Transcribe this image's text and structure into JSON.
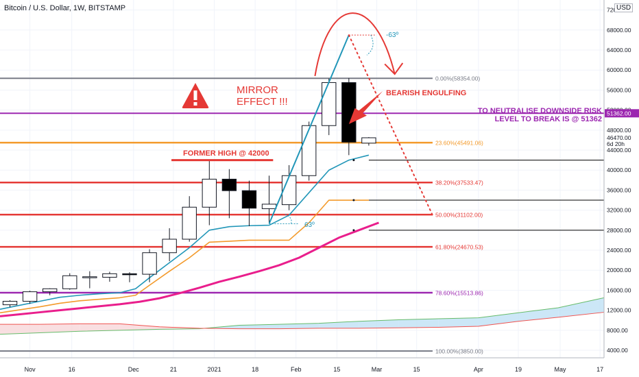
{
  "chart_data": {
    "type": "candlestick",
    "title": "Bitcoin / U.S. Dollar, 1W, BITSTAMP",
    "currency_badge": "USD",
    "yaxis": {
      "ylim": [
        2500,
        74000
      ],
      "scale": "linear",
      "side": "right",
      "ticks": [
        {
          "value": 4000,
          "label": "4000.00"
        },
        {
          "value": 8000,
          "label": "8000.00"
        },
        {
          "value": 12000,
          "label": "12000.00"
        },
        {
          "value": 16000,
          "label": "16000.00"
        },
        {
          "value": 20000,
          "label": "20000.00"
        },
        {
          "value": 24000,
          "label": "24000.00"
        },
        {
          "value": 28000,
          "label": "28000.00"
        },
        {
          "value": 32000,
          "label": "32000.00"
        },
        {
          "value": 36000,
          "label": "36000.00"
        },
        {
          "value": 40000,
          "label": "40000.00"
        },
        {
          "value": 44000,
          "label": "44000.00"
        },
        {
          "value": 48000,
          "label": "48000.00"
        },
        {
          "value": 52000,
          "label": "52000.00"
        },
        {
          "value": 56000,
          "label": "56000.00"
        },
        {
          "value": 60000,
          "label": "60000.00"
        },
        {
          "value": 64000,
          "label": "64000.00"
        },
        {
          "value": 68000,
          "label": "68000.00"
        },
        {
          "value": 72000,
          "label": "72000.00"
        }
      ],
      "price_tags": [
        {
          "value": 51362,
          "label": "51362.00",
          "color": "#9c27b0"
        },
        {
          "value": 46470,
          "label": "46470.00",
          "color": "#000000",
          "sub": "6d 20h"
        }
      ]
    },
    "xaxis": {
      "xlim": [
        0,
        30.3
      ],
      "ticks": [
        {
          "x": 1.5,
          "label": "Nov"
        },
        {
          "x": 3.6,
          "label": "16"
        },
        {
          "x": 6.7,
          "label": "Dec"
        },
        {
          "x": 8.7,
          "label": "21"
        },
        {
          "x": 10.75,
          "label": "2021"
        },
        {
          "x": 12.8,
          "label": "18"
        },
        {
          "x": 14.85,
          "label": "Feb"
        },
        {
          "x": 16.9,
          "label": "15"
        },
        {
          "x": 18.9,
          "label": "Mar"
        },
        {
          "x": 20.9,
          "label": "15"
        },
        {
          "x": 24.0,
          "label": "Apr"
        },
        {
          "x": 26.0,
          "label": "19"
        },
        {
          "x": 28.1,
          "label": "May"
        },
        {
          "x": 30.1,
          "label": "17"
        }
      ]
    },
    "candles": [
      {
        "x": 0.5,
        "o": 13100,
        "h": 14000,
        "l": 12600,
        "c": 13800
      },
      {
        "x": 1.5,
        "o": 13800,
        "h": 15900,
        "l": 13300,
        "c": 15700
      },
      {
        "x": 2.5,
        "o": 15700,
        "h": 16400,
        "l": 15000,
        "c": 16300
      },
      {
        "x": 3.5,
        "o": 16300,
        "h": 19400,
        "l": 16100,
        "c": 18900
      },
      {
        "x": 4.5,
        "o": 18500,
        "h": 19800,
        "l": 16400,
        "c": 18700
      },
      {
        "x": 5.5,
        "o": 18600,
        "h": 19700,
        "l": 17700,
        "c": 19300
      },
      {
        "x": 6.5,
        "o": 19300,
        "h": 19600,
        "l": 17600,
        "c": 19200
      },
      {
        "x": 7.5,
        "o": 19200,
        "h": 24200,
        "l": 17600,
        "c": 23500
      },
      {
        "x": 8.5,
        "o": 23500,
        "h": 28400,
        "l": 21800,
        "c": 26200
      },
      {
        "x": 9.5,
        "o": 26200,
        "h": 34800,
        "l": 25700,
        "c": 32600
      },
      {
        "x": 10.5,
        "o": 32600,
        "h": 41900,
        "l": 29000,
        "c": 38200
      },
      {
        "x": 11.5,
        "o": 38200,
        "h": 40200,
        "l": 30400,
        "c": 35900
      },
      {
        "x": 12.5,
        "o": 35900,
        "h": 37900,
        "l": 28800,
        "c": 32400
      },
      {
        "x": 13.5,
        "o": 32300,
        "h": 38900,
        "l": 29300,
        "c": 33200
      },
      {
        "x": 14.5,
        "o": 33100,
        "h": 41000,
        "l": 32000,
        "c": 38900
      },
      {
        "x": 15.5,
        "o": 38900,
        "h": 49700,
        "l": 37900,
        "c": 48900
      },
      {
        "x": 16.5,
        "o": 48900,
        "h": 58300,
        "l": 47000,
        "c": 57500
      },
      {
        "x": 17.5,
        "o": 57500,
        "h": 58400,
        "l": 43000,
        "c": 45600
      },
      {
        "x": 18.5,
        "o": 45400,
        "h": 46600,
        "l": 44900,
        "c": 46470
      }
    ],
    "series": [
      {
        "name": "",
        "color": "#2196b8",
        "x": [
          0,
          1,
          2,
          3,
          4,
          5,
          6,
          6.8,
          7.5,
          8.5,
          9.5,
          10.5,
          11.5,
          12.5,
          13.5,
          14.5,
          15.5,
          16.5,
          17.5,
          18.5
        ],
        "values": [
          12200,
          13000,
          13800,
          14600,
          15000,
          15300,
          15500,
          16300,
          18500,
          21500,
          24500,
          28000,
          28700,
          28900,
          29000,
          31000,
          35500,
          40000,
          42000,
          43000
        ]
      },
      {
        "name": "",
        "color": "#f39a2b",
        "x": [
          0,
          1,
          2,
          3,
          4,
          5,
          6,
          6.8,
          7.5,
          8.5,
          9.5,
          10.5,
          11.5,
          12.5,
          13.5,
          14.5,
          15.5,
          16.5,
          17.5,
          18.5
        ],
        "values": [
          11500,
          12100,
          12700,
          13400,
          13900,
          14200,
          14500,
          15000,
          17000,
          19800,
          22500,
          25600,
          25800,
          26000,
          26000,
          26000,
          29500,
          34000,
          34000,
          34000
        ]
      },
      {
        "name": "",
        "color": "#e91e8c",
        "x": [
          0,
          1,
          2,
          3,
          4,
          5,
          6,
          7,
          8,
          9,
          10,
          11,
          12,
          13,
          14,
          15,
          16,
          17,
          18,
          19
        ],
        "values": [
          10800,
          11200,
          11600,
          12000,
          12400,
          12800,
          13200,
          13700,
          14400,
          15400,
          16500,
          17700,
          18700,
          19800,
          21000,
          22500,
          24500,
          26500,
          28000,
          29500
        ]
      }
    ],
    "ichimoku_cloud": {
      "x": [
        0,
        2,
        4,
        6,
        8,
        10,
        12,
        14,
        16,
        18,
        20,
        22,
        24,
        26,
        28,
        30.3
      ],
      "span_a": [
        7200,
        7500,
        7800,
        8000,
        8200,
        8300,
        9000,
        9200,
        9400,
        9800,
        10100,
        10300,
        10500,
        11500,
        12500,
        14500
      ],
      "span_b": [
        9200,
        9200,
        9300,
        9300,
        8700,
        8400,
        8300,
        8300,
        8400,
        8400,
        8500,
        8600,
        8800,
        9800,
        10600,
        11600
      ]
    },
    "fibonacci": [
      {
        "value": 58354,
        "label": "0.00%(58354.00)",
        "color": "#787b86"
      },
      {
        "value": 45491,
        "label": "23.60%(45491.06)",
        "color": "#f39a2b"
      },
      {
        "value": 37533,
        "label": "38.20%(37533.47)",
        "color": "#e53935"
      },
      {
        "value": 31102,
        "label": "50.00%(31102.00)",
        "color": "#e53935"
      },
      {
        "value": 24670,
        "label": "61.80%(24670.53)",
        "color": "#e53935"
      },
      {
        "value": 15513,
        "label": "78.60%(15513.86)",
        "color": "#9c27b0"
      },
      {
        "value": 3850,
        "label": "100.00%(3850.00)",
        "color": "#787b86"
      }
    ],
    "horizontal_lines": [
      {
        "value": 51362,
        "color": "#9c27b0"
      },
      {
        "value": 42000,
        "color": "#000000",
        "x_start": 18.5
      },
      {
        "value": 34000,
        "color": "#000000",
        "x_start": 18.5
      },
      {
        "value": 28000,
        "color": "#000000",
        "x_start": 18.5
      }
    ],
    "annotations": {
      "mirror_effect": "MIRROR\nEFFECT !!!",
      "former_high": "FORMER HIGH @ 42000",
      "bearish": "BEARISH ENGULFING",
      "neutralise_line1": "TO NEUTRALISE DOWNSIDE RISK",
      "neutralise_line2": "LEVEL TO BREAK IS @ 51362",
      "angle_top": "-63º",
      "angle_bottom": "63º"
    },
    "colors": {
      "trend_line": "#2196b8",
      "projection": "#e53935",
      "annotation_red": "#e53935",
      "annotation_purple": "#9c27b0",
      "cloud_fill": "#bfe1f5",
      "cloud_fill_bear": "#f8d7da"
    }
  }
}
